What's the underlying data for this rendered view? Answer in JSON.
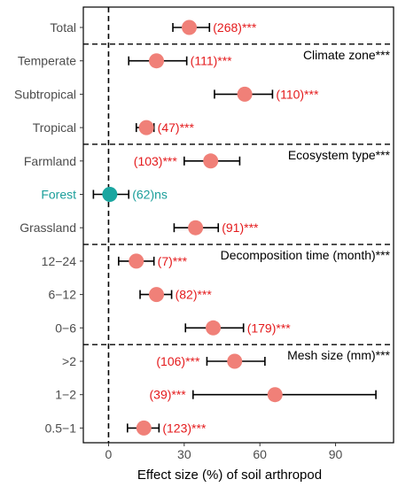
{
  "chart_data": {
    "type": "scatter",
    "subtype": "forest-plot",
    "xlabel": "Effect size (%) of soil arthropod",
    "xlim": [
      -10,
      113
    ],
    "xticks": [
      0,
      30,
      60,
      90
    ],
    "reference_line_x": 0,
    "grid": false,
    "colors": {
      "significant": "#F08078",
      "ns": "#1AA6A0",
      "label_red": "#E41A1C",
      "label_teal": "#1A9E9A"
    },
    "groups": [
      {
        "heading": "",
        "rows": [
          {
            "label": "Total",
            "estimate": 32,
            "ci": [
              25.5,
              40
            ],
            "n_label": "(268)***",
            "ns": false,
            "label_side": "right"
          }
        ]
      },
      {
        "heading": "Climate zone***",
        "rows": [
          {
            "label": "Temperate",
            "estimate": 19,
            "ci": [
              8,
              31
            ],
            "n_label": "(111)***",
            "ns": false,
            "label_side": "right"
          },
          {
            "label": "Subtropical",
            "estimate": 54,
            "ci": [
              42,
              65
            ],
            "n_label": "(110)***",
            "ns": false,
            "label_side": "right"
          },
          {
            "label": "Tropical",
            "estimate": 15,
            "ci": [
              11,
              18
            ],
            "n_label": "(47)***",
            "ns": false,
            "label_side": "right"
          }
        ]
      },
      {
        "heading": "Ecosystem type***",
        "rows": [
          {
            "label": "Farmland",
            "estimate": 40.5,
            "ci": [
              30,
              52
            ],
            "n_label": "(103)***",
            "ns": false,
            "label_side": "left"
          },
          {
            "label": "Forest",
            "estimate": 0.5,
            "ci": [
              -6,
              8
            ],
            "n_label": "(62)ns",
            "ns": true,
            "label_side": "right"
          },
          {
            "label": "Grassland",
            "estimate": 34.5,
            "ci": [
              26,
              43.5
            ],
            "n_label": "(91)***",
            "ns": false,
            "label_side": "right"
          }
        ]
      },
      {
        "heading": "Decomposition time (month)***",
        "rows": [
          {
            "label": "12−24",
            "estimate": 11,
            "ci": [
              4,
              18
            ],
            "n_label": "(7)***",
            "ns": false,
            "label_side": "right"
          },
          {
            "label": "6−12",
            "estimate": 19,
            "ci": [
              12.5,
              25
            ],
            "n_label": "(82)***",
            "ns": false,
            "label_side": "right"
          },
          {
            "label": "0−6",
            "estimate": 41.5,
            "ci": [
              30.5,
              53.5
            ],
            "n_label": "(179)***",
            "ns": false,
            "label_side": "right"
          }
        ]
      },
      {
        "heading": "Mesh size (mm)***",
        "rows": [
          {
            "label": ">2",
            "estimate": 50,
            "ci": [
              39,
              62
            ],
            "n_label": "(106)***",
            "ns": false,
            "label_side": "left"
          },
          {
            "label": "1−2",
            "estimate": 66,
            "ci": [
              33.5,
              106
            ],
            "n_label": "(39)***",
            "ns": false,
            "label_side": "left"
          },
          {
            "label": "0.5−1",
            "estimate": 14,
            "ci": [
              7.5,
              20
            ],
            "n_label": "(123)***",
            "ns": false,
            "label_side": "right"
          }
        ]
      }
    ]
  }
}
